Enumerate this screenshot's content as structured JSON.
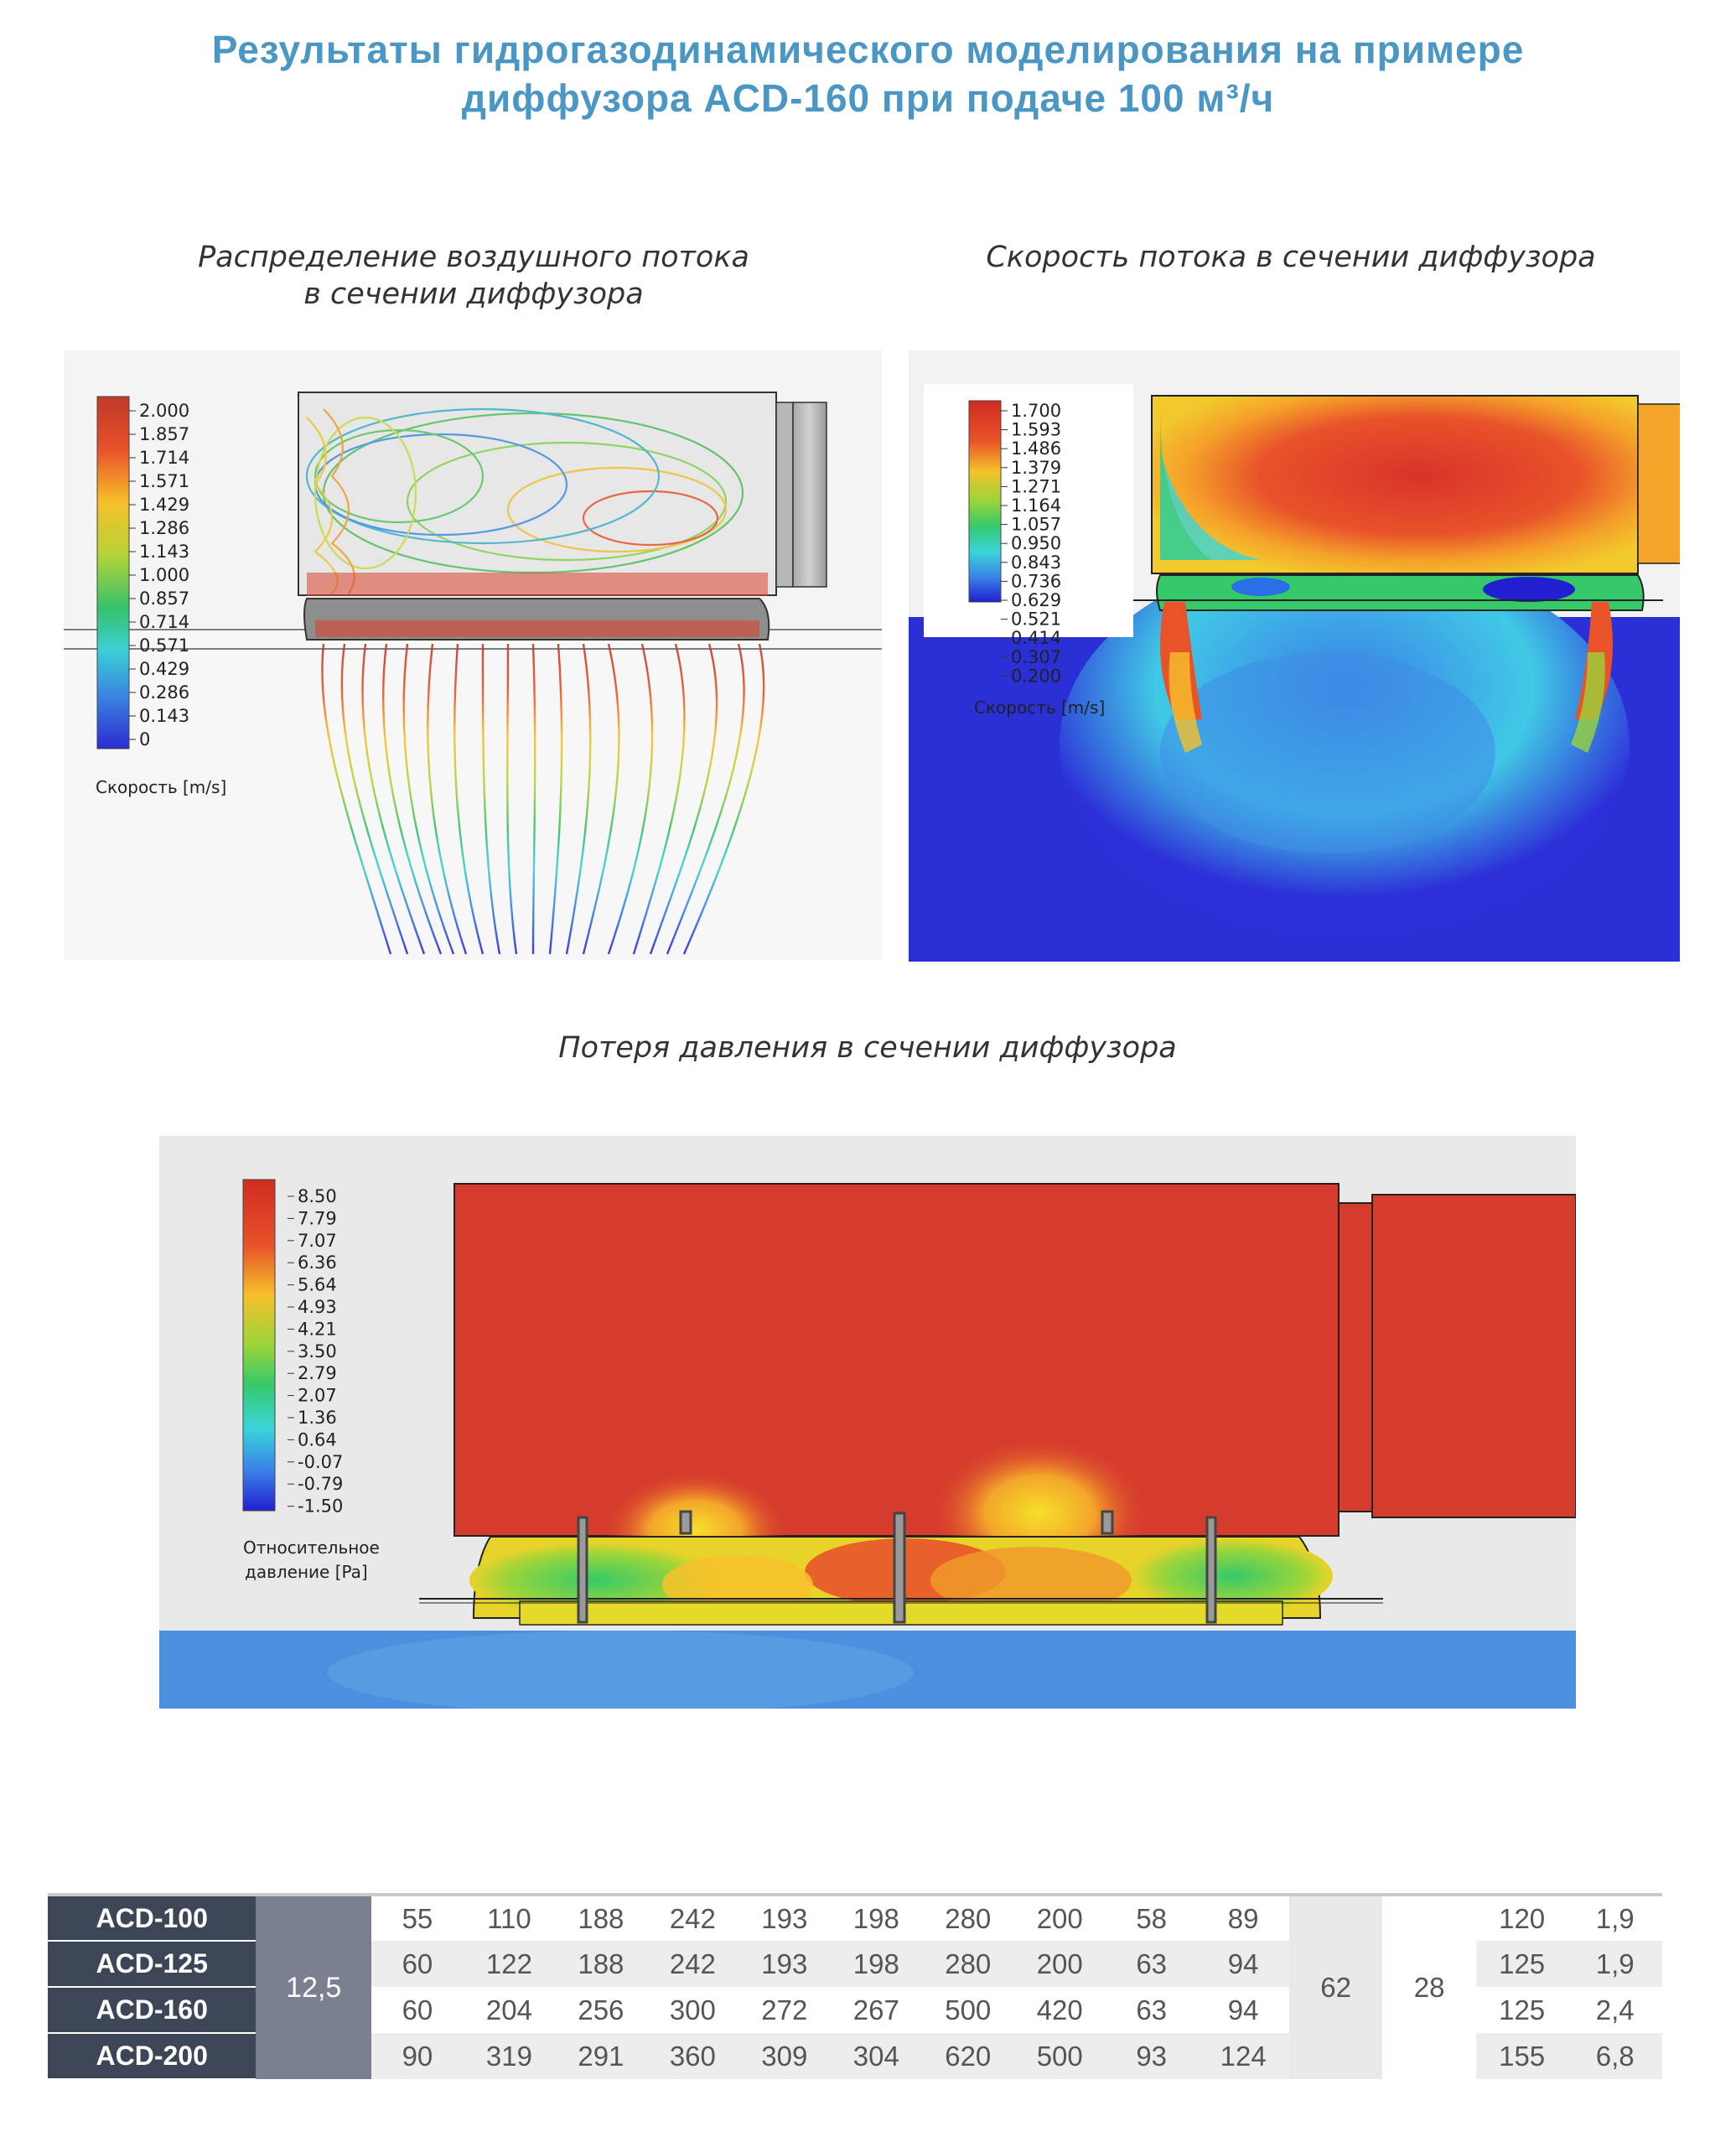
{
  "title": {
    "line1": "Результаты гидрогазодинамического моделирования на примере",
    "line2": "диффузора ACD-160 при подаче 100 м³/ч"
  },
  "figures": {
    "flow": {
      "caption_line1": "Распределение воздушного потока",
      "caption_line2": "в сечении диффузора",
      "legend_title": "Скорость [m/s]",
      "legend_values": [
        "2.000",
        "1.857",
        "1.714",
        "1.571",
        "1.429",
        "1.286",
        "1.143",
        "1.000",
        "0.857",
        "0.714",
        "0.571",
        "0.429",
        "0.286",
        "0.143",
        "0"
      ]
    },
    "velocity": {
      "caption": "Скорость потока в сечении диффузора",
      "legend_title": "Скорость [m/s]",
      "legend_values": [
        "1.700",
        "1.593",
        "1.486",
        "1.379",
        "1.271",
        "1.164",
        "1.057",
        "0.950",
        "0.843",
        "0.736",
        "0.629",
        "0.521",
        "0.414",
        "0.307",
        "0.200"
      ]
    },
    "pressure": {
      "caption": "Потеря давления в сечении диффузора",
      "legend_title_line1": "Относительное",
      "legend_title_line2": "давление [Pa]",
      "legend_values": [
        "8.50",
        "7.79",
        "7.07",
        "6.36",
        "5.64",
        "4.93",
        "4.21",
        "3.50",
        "2.79",
        "2.07",
        "1.36",
        "0.64",
        "-0.07",
        "-0.79",
        "-1.50"
      ]
    }
  },
  "colors": {
    "title": "#4a96c4",
    "model_cell": "#3d4656",
    "merged_cell": "#7b8090"
  },
  "table": {
    "shared_col": "12,5",
    "shared_62": "62",
    "shared_28": "28",
    "rows": [
      {
        "model": "ACD-100",
        "values": [
          "55",
          "110",
          "188",
          "242",
          "193",
          "198",
          "280",
          "200",
          "58",
          "89"
        ],
        "tail": [
          "120",
          "1,9"
        ]
      },
      {
        "model": "ACD-125",
        "values": [
          "60",
          "122",
          "188",
          "242",
          "193",
          "198",
          "280",
          "200",
          "63",
          "94"
        ],
        "tail": [
          "125",
          "1,9"
        ]
      },
      {
        "model": "ACD-160",
        "values": [
          "60",
          "204",
          "256",
          "300",
          "272",
          "267",
          "500",
          "420",
          "63",
          "94"
        ],
        "tail": [
          "125",
          "2,4"
        ]
      },
      {
        "model": "ACD-200",
        "values": [
          "90",
          "319",
          "291",
          "360",
          "309",
          "304",
          "620",
          "500",
          "93",
          "124"
        ],
        "tail": [
          "155",
          "6,8"
        ]
      }
    ]
  }
}
